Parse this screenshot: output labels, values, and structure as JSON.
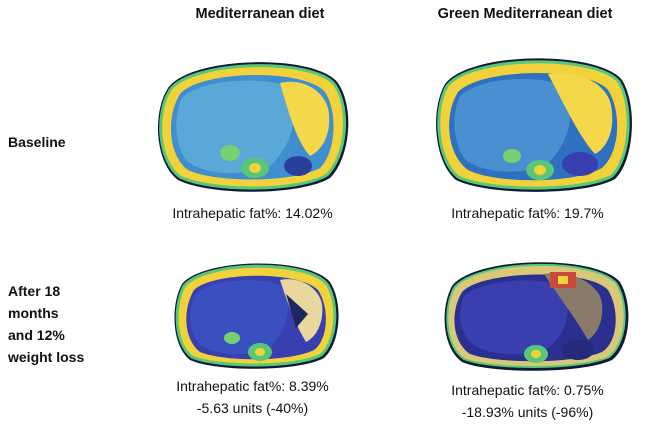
{
  "columns": [
    {
      "title": "Mediterranean diet"
    },
    {
      "title": "Green Mediterranean diet"
    }
  ],
  "rows": [
    {
      "label_lines": [
        "Baseline"
      ]
    },
    {
      "label_lines": [
        "After 18",
        "months",
        "and 12%",
        "weight loss"
      ]
    }
  ],
  "panels": {
    "med_baseline": {
      "caption": "Intrahepatic fat%: 14.02%",
      "change": ""
    },
    "green_baseline": {
      "caption": "Intrahepatic fat%: 19.7%",
      "change": ""
    },
    "med_after": {
      "caption": "Intrahepatic fat%: 8.39%",
      "change": "-5.63 units (-40%)"
    },
    "green_after": {
      "caption": "Intrahepatic fat%: 0.75%",
      "change": "-18.93% units (-96%)"
    }
  },
  "colors": {
    "outer_fat": "#f2d23a",
    "liver_light": "#5aa8d8",
    "liver_dark": "#3a3fb0",
    "spleen_bright": "#f4d84a",
    "border_green": "#58c878"
  }
}
